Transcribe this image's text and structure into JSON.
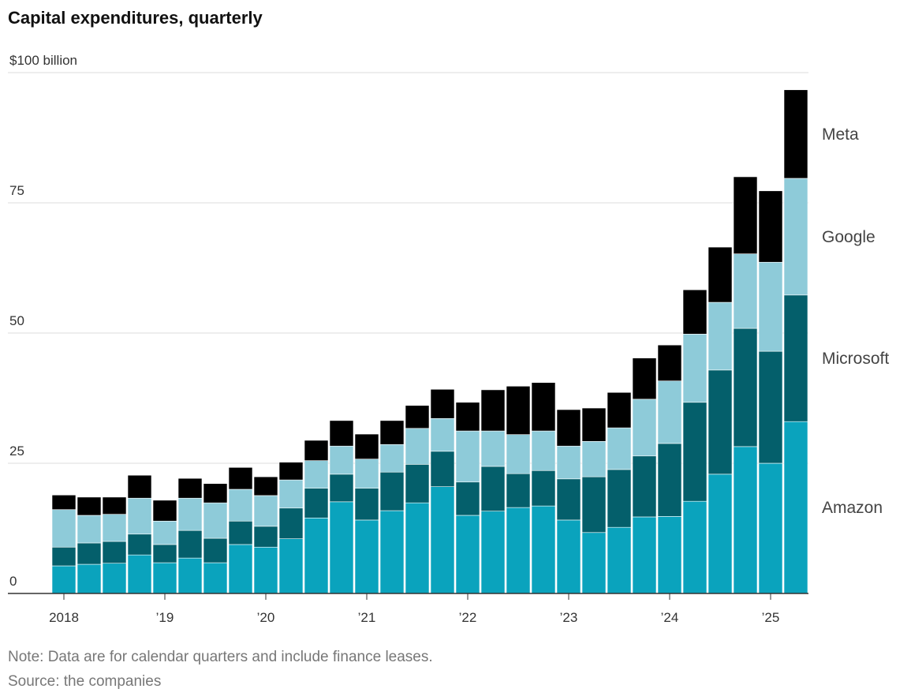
{
  "chart_data": {
    "type": "stacked-bar",
    "title": "Capital expenditures, quarterly",
    "note": "Note: Data are for calendar quarters and include finance leases.",
    "source": "Source: the companies",
    "categories": [
      "2018",
      null,
      null,
      null,
      "’19",
      null,
      null,
      null,
      "’20",
      null,
      null,
      null,
      "’21",
      null,
      null,
      null,
      "’22",
      null,
      null,
      null,
      "’23",
      null,
      null,
      null,
      "’24",
      null,
      null,
      null,
      "’25",
      null
    ],
    "series": [
      {
        "name": "Amazon",
        "color": "#0aa3bd",
        "values": [
          5.3,
          5.6,
          5.8,
          7.4,
          5.9,
          6.8,
          5.9,
          9.4,
          8.9,
          10.5,
          14.5,
          17.6,
          14.1,
          15.9,
          17.4,
          20.5,
          15.0,
          15.8,
          16.5,
          16.8,
          14.1,
          11.7,
          12.7,
          14.7,
          14.8,
          17.7,
          22.9,
          28.2,
          25.0,
          33.0
        ]
      },
      {
        "name": "Microsoft",
        "color": "#045f6b",
        "values": [
          3.6,
          4.1,
          4.2,
          4.0,
          3.5,
          5.3,
          4.7,
          4.5,
          4.0,
          5.9,
          5.7,
          5.3,
          6.1,
          7.4,
          7.4,
          6.8,
          6.4,
          8.6,
          6.5,
          6.8,
          7.9,
          10.7,
          11.1,
          11.7,
          14.0,
          19.0,
          20.0,
          22.7,
          21.5,
          24.3
        ]
      },
      {
        "name": "Google",
        "color": "#8ecbd9",
        "values": [
          7.2,
          5.3,
          5.2,
          6.9,
          4.5,
          6.2,
          6.8,
          6.1,
          5.9,
          5.4,
          5.3,
          5.4,
          5.6,
          5.3,
          6.9,
          6.3,
          9.8,
          6.8,
          7.5,
          7.6,
          6.3,
          6.8,
          8.0,
          10.9,
          12.0,
          13.1,
          13.0,
          14.3,
          17.1,
          22.4
        ]
      },
      {
        "name": "Meta",
        "color": "#000000",
        "values": [
          2.8,
          3.5,
          3.3,
          4.4,
          4.0,
          3.8,
          3.7,
          4.2,
          3.6,
          3.4,
          3.9,
          4.9,
          4.8,
          4.6,
          4.4,
          5.6,
          5.5,
          7.9,
          9.3,
          9.3,
          7.0,
          6.4,
          6.8,
          7.9,
          6.9,
          8.5,
          10.6,
          14.8,
          13.7,
          17.0
        ]
      }
    ],
    "ylim": [
      0,
      100
    ],
    "yticks": [
      0,
      25,
      50,
      75,
      {
        "value": 100,
        "label": "$100 billion"
      }
    ],
    "grid": true
  }
}
